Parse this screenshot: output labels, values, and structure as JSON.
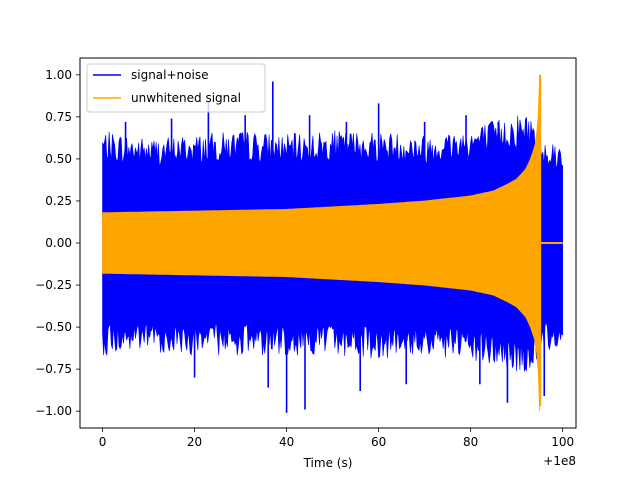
{
  "chart_data": {
    "type": "line",
    "title": "",
    "xlabel": "Time (s)",
    "ylabel": "",
    "x_offset_label": "+1e8",
    "xlim": [
      -4.9,
      102.9
    ],
    "ylim": [
      -1.1,
      1.1
    ],
    "xticks": [
      0,
      20,
      40,
      60,
      80,
      100
    ],
    "xtick_labels": [
      "0",
      "20",
      "40",
      "60",
      "80",
      "100"
    ],
    "yticks": [
      -1.0,
      -0.75,
      -0.5,
      -0.25,
      0.0,
      0.25,
      0.5,
      0.75,
      1.0
    ],
    "ytick_labels": [
      "−1.00",
      "−0.75",
      "−0.50",
      "−0.25",
      "0.00",
      "0.25",
      "0.50",
      "0.75",
      "1.00"
    ],
    "grid": false,
    "legend": {
      "placement": "top-left"
    },
    "series": [
      {
        "name": "signal+noise",
        "color": "#0000ff",
        "x_range": [
          0,
          100
        ],
        "envelope": {
          "x": [
            0,
            10,
            20,
            30,
            40,
            50,
            60,
            70,
            80,
            85,
            90,
            93,
            95,
            97,
            100
          ],
          "upper": [
            0.62,
            0.58,
            0.6,
            0.62,
            0.6,
            0.62,
            0.62,
            0.6,
            0.64,
            0.68,
            0.72,
            0.72,
            0.6,
            0.58,
            0.55
          ],
          "lower": [
            -0.62,
            -0.6,
            -0.62,
            -0.62,
            -0.62,
            -0.62,
            -0.64,
            -0.62,
            -0.66,
            -0.68,
            -0.72,
            -0.72,
            -0.62,
            -0.6,
            -0.55
          ]
        },
        "peaks": [
          {
            "x": 5,
            "y": 0.72
          },
          {
            "x": 15,
            "y": 0.74
          },
          {
            "x": 23,
            "y": 0.84
          },
          {
            "x": 31,
            "y": 0.76
          },
          {
            "x": 37,
            "y": 0.96
          },
          {
            "x": 45,
            "y": 0.76
          },
          {
            "x": 53,
            "y": 0.72
          },
          {
            "x": 60,
            "y": 0.83
          },
          {
            "x": 70,
            "y": 0.72
          },
          {
            "x": 79,
            "y": 0.76
          },
          {
            "x": 86,
            "y": 0.72
          },
          {
            "x": 20,
            "y": -0.8
          },
          {
            "x": 36,
            "y": -0.86
          },
          {
            "x": 40,
            "y": -1.01
          },
          {
            "x": 44,
            "y": -0.99
          },
          {
            "x": 56,
            "y": -0.88
          },
          {
            "x": 66,
            "y": -0.84
          },
          {
            "x": 82,
            "y": -0.84
          },
          {
            "x": 88,
            "y": -0.95
          },
          {
            "x": 96,
            "y": -0.91
          }
        ]
      },
      {
        "name": "unwhitened signal",
        "color": "#ffa500",
        "x_range": [
          0,
          100
        ],
        "merger_time": 95,
        "envelope": {
          "x": [
            0,
            20,
            40,
            60,
            70,
            80,
            85,
            88,
            90,
            92,
            93,
            94,
            94.6,
            95
          ],
          "amplitude": [
            0.18,
            0.19,
            0.2,
            0.23,
            0.25,
            0.28,
            0.31,
            0.35,
            0.38,
            0.44,
            0.5,
            0.58,
            0.7,
            1.0
          ]
        },
        "post_merger": {
          "x": [
            95,
            100
          ],
          "y": 0.0
        },
        "extrema": [
          {
            "x": 95.1,
            "y": 1.0
          },
          {
            "x": 95.1,
            "y": -0.97
          }
        ]
      }
    ]
  }
}
